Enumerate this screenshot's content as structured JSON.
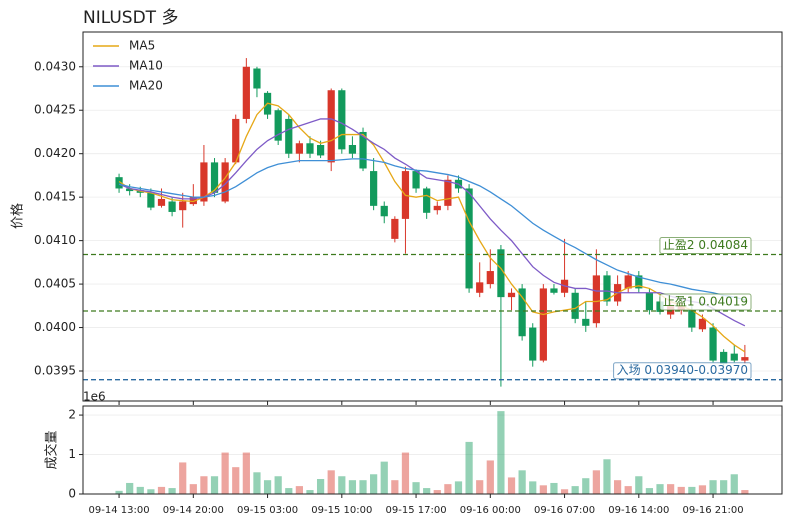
{
  "chart_data": {
    "type": "candlestick",
    "title": "NILUSDT  多",
    "ylabel": "价格",
    "x": [
      0,
      1,
      2,
      3,
      4,
      5,
      6,
      7,
      8,
      9,
      10,
      11,
      12,
      13,
      14,
      15,
      16,
      17,
      18,
      19,
      20,
      21,
      22,
      23,
      24,
      25,
      26,
      27,
      28,
      29,
      30,
      31,
      32,
      33,
      34,
      35,
      36,
      37,
      38,
      39,
      40,
      41,
      42,
      43,
      44,
      45,
      46,
      47,
      48,
      49,
      50,
      51,
      52,
      53,
      54,
      55,
      56,
      57,
      58,
      59
    ],
    "open": [
      0.04173,
      0.0416,
      0.04158,
      0.04155,
      0.0414,
      0.04145,
      0.04135,
      0.04142,
      0.04145,
      0.0419,
      0.04145,
      0.0419,
      0.0424,
      0.04298,
      0.0427,
      0.0425,
      0.0424,
      0.042,
      0.04212,
      0.0421,
      0.0419,
      0.04273,
      0.0421,
      0.04225,
      0.0418,
      0.0414,
      0.04102,
      0.04125,
      0.0418,
      0.0416,
      0.04135,
      0.0414,
      0.0417,
      0.0416,
      0.0404,
      0.0405,
      0.0409,
      0.04035,
      0.04045,
      0.04,
      0.03962,
      0.04045,
      0.0404,
      0.0404,
      0.0401,
      0.04005,
      0.0406,
      0.0403,
      0.04045,
      0.0406,
      0.0404,
      0.0403,
      0.04015,
      0.0402,
      0.0402,
      0.03998,
      0.04,
      0.03972,
      0.0397,
      0.03962
    ],
    "high": [
      0.04177,
      0.04165,
      0.04162,
      0.0416,
      0.0416,
      0.0415,
      0.04155,
      0.04165,
      0.0421,
      0.04195,
      0.04195,
      0.04245,
      0.0431,
      0.043,
      0.04272,
      0.04252,
      0.04245,
      0.04215,
      0.0422,
      0.04215,
      0.04275,
      0.04275,
      0.0422,
      0.0423,
      0.04195,
      0.04145,
      0.04128,
      0.04185,
      0.04182,
      0.04162,
      0.04145,
      0.04175,
      0.04175,
      0.04165,
      0.04075,
      0.0409,
      0.04095,
      0.04045,
      0.0405,
      0.04005,
      0.0405,
      0.0405,
      0.04102,
      0.04045,
      0.0403,
      0.0409,
      0.04065,
      0.0406,
      0.04065,
      0.04065,
      0.04045,
      0.04035,
      0.0403,
      0.0403,
      0.04025,
      0.04015,
      0.04005,
      0.03975,
      0.0398,
      0.0398
    ],
    "low": [
      0.04155,
      0.04152,
      0.0415,
      0.04135,
      0.04138,
      0.04128,
      0.04115,
      0.0414,
      0.0414,
      0.0415,
      0.04143,
      0.04188,
      0.04235,
      0.04265,
      0.0424,
      0.0421,
      0.04195,
      0.0419,
      0.04195,
      0.04195,
      0.0418,
      0.042,
      0.04195,
      0.0418,
      0.04135,
      0.0412,
      0.04098,
      0.04085,
      0.04155,
      0.04125,
      0.0413,
      0.04135,
      0.04155,
      0.0404,
      0.04035,
      0.04045,
      0.03932,
      0.0402,
      0.03985,
      0.03955,
      0.0396,
      0.04038,
      0.04035,
      0.04005,
      0.03995,
      0.04,
      0.04025,
      0.04025,
      0.0404,
      0.0404,
      0.04015,
      0.04015,
      0.0401,
      0.04015,
      0.03995,
      0.03995,
      0.0396,
      0.03955,
      0.0396,
      0.03958
    ],
    "close": [
      0.0416,
      0.04157,
      0.04155,
      0.04138,
      0.04148,
      0.04133,
      0.04145,
      0.0415,
      0.0419,
      0.04155,
      0.0419,
      0.0424,
      0.043,
      0.04275,
      0.04245,
      0.04215,
      0.042,
      0.04212,
      0.042,
      0.04198,
      0.04273,
      0.04205,
      0.042,
      0.04183,
      0.0414,
      0.04128,
      0.04125,
      0.0418,
      0.0416,
      0.04132,
      0.0414,
      0.0417,
      0.0416,
      0.04045,
      0.04052,
      0.04065,
      0.04035,
      0.0404,
      0.0399,
      0.03962,
      0.04045,
      0.0404,
      0.04055,
      0.0401,
      0.04002,
      0.0406,
      0.0403,
      0.0405,
      0.0406,
      0.04045,
      0.0402,
      0.04018,
      0.04025,
      0.04025,
      0.04,
      0.0401,
      0.03962,
      0.03958,
      0.03962,
      0.03966
    ],
    "up_color": "#d8372a",
    "down_color": "#129a5c",
    "xlim": [
      -3.4,
      62.5
    ],
    "ylim": [
      0.039155,
      0.0434
    ],
    "yticks": [
      0.0395,
      {
        "value": 0.04,
        "label": "0.0400"
      },
      0.0405,
      {
        "value": 0.041,
        "label": "0.0410"
      },
      0.0415,
      {
        "value": 0.042,
        "label": "0.0420"
      },
      0.0425,
      {
        "value": 0.043,
        "label": "0.0430"
      }
    ],
    "xticks": [
      {
        "value": 0,
        "label": "09-14 13:00"
      },
      {
        "value": 7,
        "label": "09-14 20:00"
      },
      {
        "value": 14,
        "label": "09-15 03:00"
      },
      {
        "value": 21,
        "label": "09-15 10:00"
      },
      {
        "value": 28,
        "label": "09-15 17:00"
      },
      {
        "value": 35,
        "label": "09-16 00:00"
      },
      {
        "value": 42,
        "label": "09-16 07:00"
      },
      {
        "value": 49,
        "label": "09-16 14:00"
      },
      {
        "value": 56,
        "label": "09-16 21:00"
      }
    ],
    "grid": true,
    "legend": "upper left",
    "ma_series": [
      {
        "name": "MA5",
        "color": "#e6a817",
        "values": [
          0.04168,
          0.0416,
          0.04157,
          0.04155,
          0.04151,
          0.04147,
          0.04146,
          0.04145,
          0.0415,
          0.04158,
          0.04172,
          0.0419,
          0.0422,
          0.04245,
          0.04258,
          0.04255,
          0.04245,
          0.0423,
          0.04218,
          0.04212,
          0.04215,
          0.04222,
          0.04222,
          0.04222,
          0.0421,
          0.0419,
          0.04168,
          0.04152,
          0.0415,
          0.04152,
          0.04146,
          0.04148,
          0.0415,
          0.04122,
          0.041,
          0.0408,
          0.04068,
          0.0405,
          0.04035,
          0.04018,
          0.04015,
          0.04018,
          0.0402,
          0.04022,
          0.0403,
          0.0403,
          0.04032,
          0.0404,
          0.04046,
          0.04048,
          0.04045,
          0.04038,
          0.0403,
          0.04025,
          0.0402,
          0.04012,
          0.04002,
          0.0399,
          0.0398,
          0.03972
        ]
      },
      {
        "name": "MA10",
        "color": "#7e5bc7",
        "values": [
          0.04165,
          0.0416,
          0.04158,
          0.04156,
          0.04153,
          0.0415,
          0.04148,
          0.04148,
          0.0415,
          0.04155,
          0.04165,
          0.04178,
          0.04192,
          0.04205,
          0.04215,
          0.04222,
          0.04228,
          0.04232,
          0.04236,
          0.0424,
          0.0424,
          0.04235,
          0.04228,
          0.0422,
          0.04212,
          0.04205,
          0.04195,
          0.04188,
          0.0418,
          0.04172,
          0.0417,
          0.04168,
          0.04165,
          0.04155,
          0.0414,
          0.04125,
          0.04112,
          0.041,
          0.04085,
          0.0407,
          0.0406,
          0.04052,
          0.04048,
          0.04045,
          0.04045,
          0.04042,
          0.04042,
          0.0404,
          0.0404,
          0.0404,
          0.0404,
          0.0404,
          0.04036,
          0.04033,
          0.0403,
          0.04028,
          0.04022,
          0.04015,
          0.04008,
          0.04002
        ]
      },
      {
        "name": "MA20",
        "color": "#3f8fd6",
        "values": [
          0.04165,
          0.04162,
          0.0416,
          0.04158,
          0.04156,
          0.04154,
          0.04152,
          0.0415,
          0.0415,
          0.04152,
          0.04156,
          0.04162,
          0.0417,
          0.04178,
          0.04184,
          0.04188,
          0.0419,
          0.04192,
          0.04192,
          0.04192,
          0.04192,
          0.04193,
          0.04194,
          0.04194,
          0.04192,
          0.0419,
          0.04186,
          0.04183,
          0.04181,
          0.0418,
          0.04178,
          0.04176,
          0.04173,
          0.04168,
          0.04163,
          0.04156,
          0.04148,
          0.0414,
          0.0413,
          0.0412,
          0.04112,
          0.04105,
          0.04098,
          0.04092,
          0.04085,
          0.04078,
          0.04072,
          0.04066,
          0.04062,
          0.04058,
          0.04055,
          0.04052,
          0.0405,
          0.04047,
          0.04044,
          0.04042,
          0.0404,
          0.04037,
          0.04035,
          0.04032
        ]
      }
    ],
    "hlines": [
      {
        "value": 0.04084,
        "label": "止盈2 0.04084",
        "color": "#3d7a1e"
      },
      {
        "value": 0.04019,
        "label": "止盈1 0.04019",
        "color": "#3d7a1e"
      },
      {
        "value": 0.0394,
        "label": "入场 0.03940-0.03970",
        "color": "#2a6aa0"
      }
    ],
    "volume": {
      "ylabel": "成交量",
      "offset_label": "1e6",
      "values": [
        0.08,
        0.28,
        0.18,
        0.12,
        0.18,
        0.15,
        0.8,
        0.25,
        0.45,
        0.45,
        1.05,
        0.68,
        1.05,
        0.55,
        0.35,
        0.45,
        0.15,
        0.2,
        0.1,
        0.38,
        0.6,
        0.45,
        0.35,
        0.35,
        0.5,
        0.82,
        0.35,
        1.05,
        0.3,
        0.15,
        0.1,
        0.25,
        0.32,
        1.32,
        0.35,
        0.85,
        2.1,
        0.42,
        0.6,
        0.32,
        0.22,
        0.28,
        0.12,
        0.2,
        0.4,
        0.6,
        0.88,
        0.35,
        0.2,
        0.45,
        0.15,
        0.25,
        0.25,
        0.18,
        0.18,
        0.22,
        0.35,
        0.35,
        0.5,
        0.1
      ],
      "ylim": [
        0,
        2.23
      ],
      "yticks": [
        0,
        1,
        2
      ]
    }
  }
}
